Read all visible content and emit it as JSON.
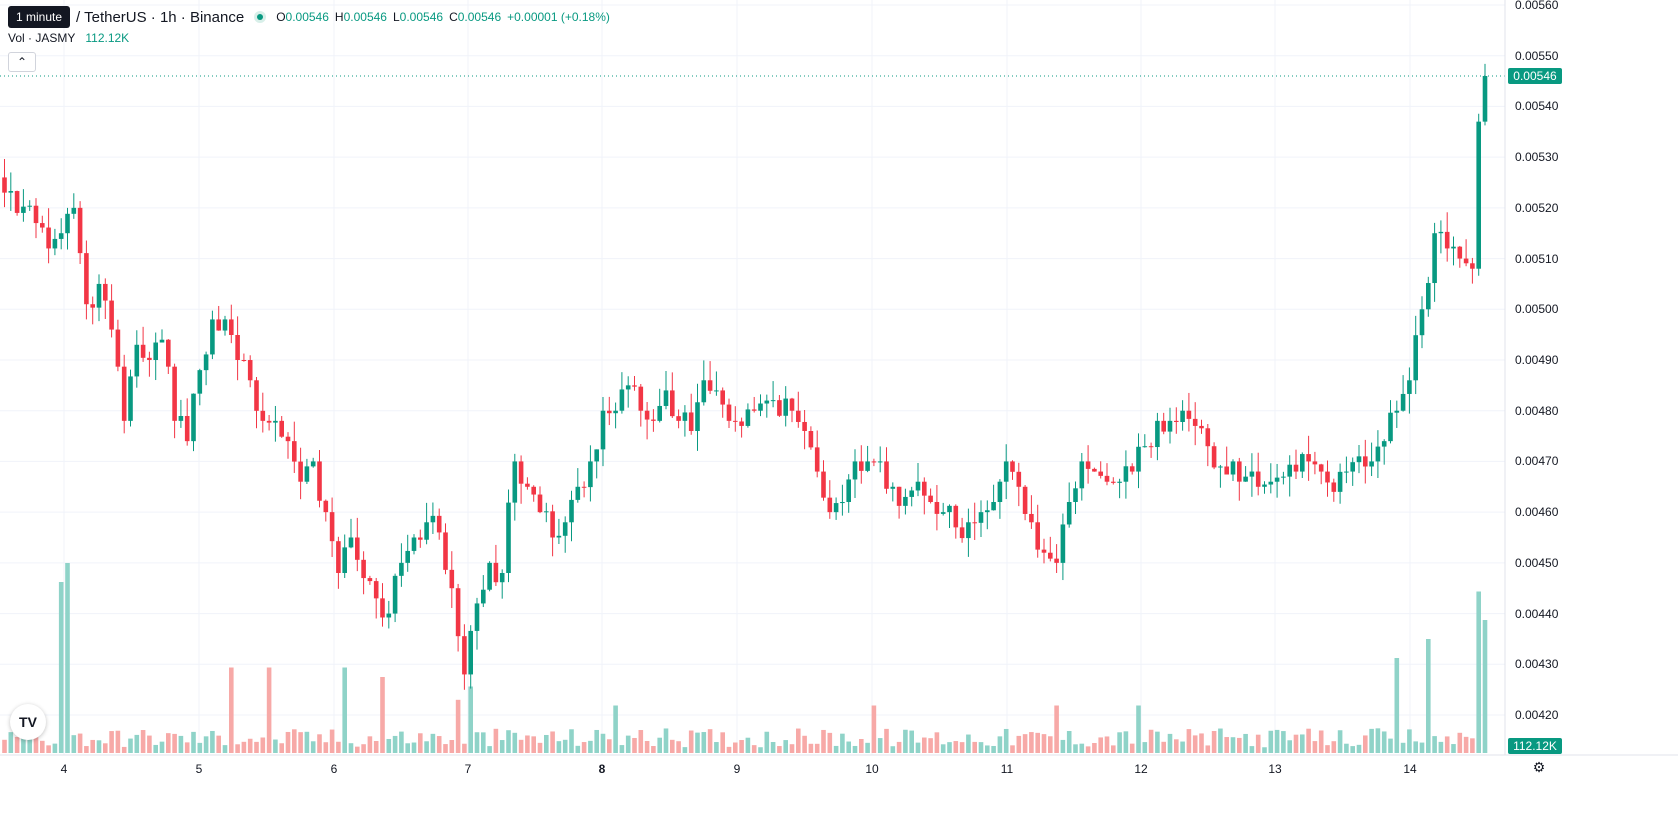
{
  "header": {
    "tooltip": "1 minute",
    "symbol": "/ TetherUS · 1h · Binance",
    "open_label": "O",
    "open_value": "0.00546",
    "high_label": "H",
    "high_value": "0.00546",
    "low_label": "L",
    "low_value": "0.00546",
    "close_label": "C",
    "close_value": "0.00546",
    "change": "+0.00001 (+0.18%)"
  },
  "volume_legend": {
    "label": "Vol · JASMY",
    "value": "112.12K"
  },
  "price_axis": {
    "labels": [
      "0.00560",
      "0.00550",
      "0.00540",
      "0.00530",
      "0.00520",
      "0.00510",
      "0.00500",
      "0.00490",
      "0.00480",
      "0.00470",
      "0.00460",
      "0.00450",
      "0.00440",
      "0.00430",
      "0.00420"
    ],
    "last_price": "0.00546",
    "volume_tag": "112.12K"
  },
  "time_axis": {
    "labels": [
      {
        "text": "4",
        "bold": false
      },
      {
        "text": "5",
        "bold": false
      },
      {
        "text": "6",
        "bold": false
      },
      {
        "text": "7",
        "bold": false
      },
      {
        "text": "8",
        "bold": true
      },
      {
        "text": "9",
        "bold": false
      },
      {
        "text": "10",
        "bold": false
      },
      {
        "text": "11",
        "bold": false
      },
      {
        "text": "12",
        "bold": false
      },
      {
        "text": "13",
        "bold": false
      },
      {
        "text": "14",
        "bold": false
      }
    ]
  },
  "colors": {
    "up": "#089981",
    "down": "#f23645",
    "up_volume": "#8fd3c8",
    "down_volume": "#f7a9a7",
    "grid": "#f0f3fa"
  },
  "icons": {
    "logo": "tradingview-logo-icon",
    "settings": "gear-icon",
    "collapse": "chevron-up-icon"
  },
  "chart_data": {
    "type": "candlestick",
    "title": "",
    "timeframe": "1h",
    "ylim": [
      0.00415,
      0.0056
    ],
    "x_ticks": [
      "4",
      "5",
      "6",
      "7",
      "8",
      "9",
      "10",
      "11",
      "12",
      "13",
      "14"
    ],
    "anchor_closes": [
      [
        0,
        0.00523
      ],
      [
        2,
        0.00519
      ],
      [
        5,
        0.00517
      ],
      [
        7,
        0.00512
      ],
      [
        9,
        0.00515
      ],
      [
        11,
        0.0052
      ],
      [
        13,
        0.00501
      ],
      [
        15,
        0.00505
      ],
      [
        17,
        0.00496
      ],
      [
        19,
        0.00478
      ],
      [
        21,
        0.00493
      ],
      [
        23,
        0.0049
      ],
      [
        25,
        0.00494
      ],
      [
        27,
        0.00478
      ],
      [
        29,
        0.00474
      ],
      [
        31,
        0.00488
      ],
      [
        33,
        0.00498
      ],
      [
        35,
        0.00498
      ],
      [
        37,
        0.0049
      ],
      [
        39,
        0.00486
      ],
      [
        41,
        0.00478
      ],
      [
        43,
        0.00478
      ],
      [
        45,
        0.00474
      ],
      [
        47,
        0.00466
      ],
      [
        49,
        0.0047
      ],
      [
        51,
        0.0046
      ],
      [
        53,
        0.00448
      ],
      [
        55,
        0.00455
      ],
      [
        57,
        0.00447
      ],
      [
        59,
        0.00443
      ],
      [
        61,
        0.0044
      ],
      [
        63,
        0.0045
      ],
      [
        65,
        0.00455
      ],
      [
        67,
        0.00458
      ],
      [
        69,
        0.00456
      ],
      [
        71,
        0.00445
      ],
      [
        73,
        0.00428
      ],
      [
        75,
        0.00442
      ],
      [
        77,
        0.0045
      ],
      [
        79,
        0.00448
      ],
      [
        81,
        0.0047
      ],
      [
        83,
        0.00465
      ],
      [
        85,
        0.0046
      ],
      [
        87,
        0.00455
      ],
      [
        89,
        0.00458
      ],
      [
        91,
        0.00465
      ],
      [
        93,
        0.0047
      ],
      [
        95,
        0.0048
      ],
      [
        97,
        0.0048
      ],
      [
        99,
        0.00485
      ],
      [
        101,
        0.0048
      ],
      [
        103,
        0.00478
      ],
      [
        105,
        0.00484
      ],
      [
        107,
        0.00478
      ],
      [
        109,
        0.00476
      ],
      [
        111,
        0.00486
      ],
      [
        113,
        0.00484
      ],
      [
        115,
        0.00478
      ],
      [
        117,
        0.00477
      ],
      [
        119,
        0.0048
      ],
      [
        121,
        0.00482
      ],
      [
        123,
        0.00479
      ],
      [
        125,
        0.0048
      ],
      [
        127,
        0.00476
      ],
      [
        129,
        0.00468
      ],
      [
        131,
        0.0046
      ],
      [
        133,
        0.00462
      ],
      [
        135,
        0.0047
      ],
      [
        137,
        0.0047
      ],
      [
        139,
        0.0047
      ],
      [
        141,
        0.00465
      ],
      [
        143,
        0.00463
      ],
      [
        145,
        0.00466
      ],
      [
        147,
        0.00462
      ],
      [
        149,
        0.0046
      ],
      [
        151,
        0.00457
      ],
      [
        153,
        0.00458
      ],
      [
        155,
        0.0046
      ],
      [
        157,
        0.00462
      ],
      [
        159,
        0.0047
      ],
      [
        161,
        0.00465
      ],
      [
        163,
        0.00458
      ],
      [
        165,
        0.00452
      ],
      [
        167,
        0.0045
      ],
      [
        169,
        0.00462
      ],
      [
        171,
        0.0047
      ],
      [
        173,
        0.00468
      ],
      [
        175,
        0.00466
      ],
      [
        177,
        0.00466
      ],
      [
        179,
        0.00468
      ],
      [
        181,
        0.00473
      ],
      [
        183,
        0.00478
      ],
      [
        185,
        0.00478
      ],
      [
        187,
        0.0048
      ],
      [
        189,
        0.00477
      ],
      [
        191,
        0.00473
      ],
      [
        193,
        0.00469
      ],
      [
        195,
        0.0047
      ],
      [
        197,
        0.00467
      ],
      [
        199,
        0.00465
      ],
      [
        201,
        0.00466
      ],
      [
        203,
        0.00467
      ],
      [
        205,
        0.00468
      ],
      [
        207,
        0.0047
      ],
      [
        209,
        0.00468
      ],
      [
        211,
        0.00464
      ],
      [
        213,
        0.00468
      ],
      [
        215,
        0.00471
      ],
      [
        217,
        0.0047
      ],
      [
        219,
        0.00474
      ],
      [
        221,
        0.0048
      ],
      [
        223,
        0.00486
      ],
      [
        225,
        0.005
      ],
      [
        227,
        0.00515
      ],
      [
        229,
        0.00512
      ],
      [
        231,
        0.0051
      ],
      [
        233,
        0.00508
      ],
      [
        234,
        0.00537
      ],
      [
        235,
        0.00546
      ]
    ],
    "volume_peaks": [
      [
        9,
        0.9
      ],
      [
        10,
        1.0
      ],
      [
        36,
        0.45
      ],
      [
        42,
        0.45
      ],
      [
        54,
        0.45
      ],
      [
        60,
        0.4
      ],
      [
        72,
        0.28
      ],
      [
        74,
        0.35
      ],
      [
        97,
        0.25
      ],
      [
        138,
        0.25
      ],
      [
        167,
        0.25
      ],
      [
        180,
        0.25
      ],
      [
        221,
        0.5
      ],
      [
        226,
        0.6
      ],
      [
        234,
        0.85
      ],
      [
        235,
        0.7
      ]
    ]
  }
}
